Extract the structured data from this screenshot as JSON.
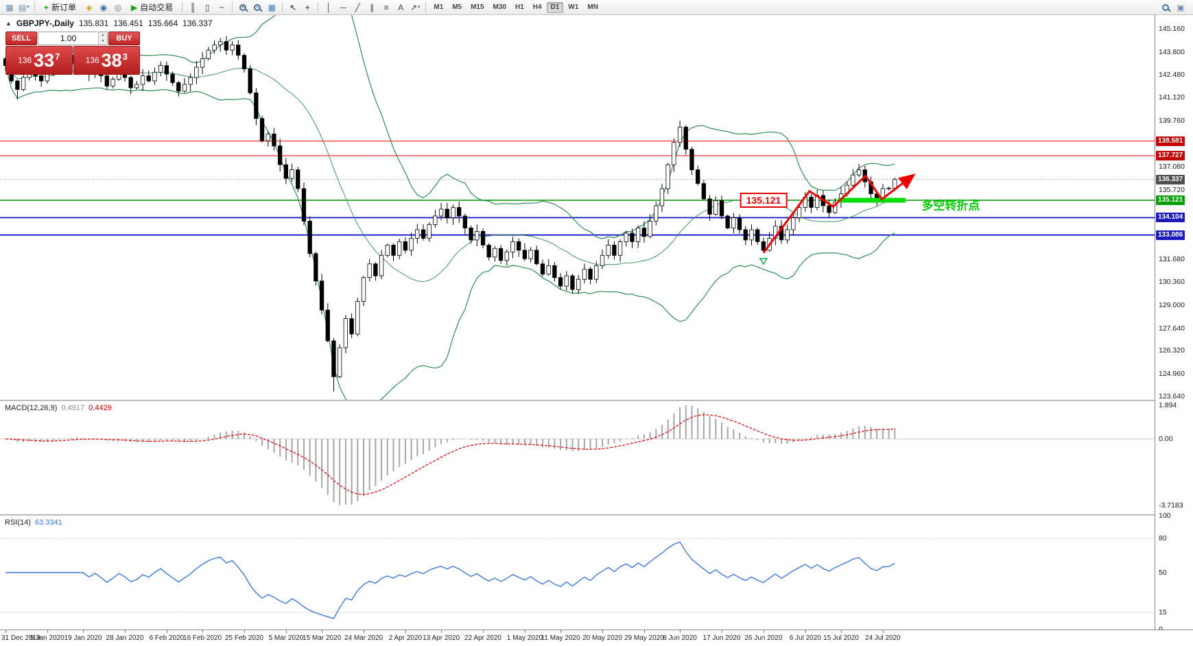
{
  "toolbar": {
    "items": [
      {
        "type": "icon",
        "name": "new-chart-icon",
        "glyph": "▦",
        "color": "#6b8cae"
      },
      {
        "type": "icon",
        "name": "profiles-icon",
        "glyph": "▤",
        "color": "#6b8cae",
        "caret": true
      },
      {
        "type": "sep"
      },
      {
        "type": "button",
        "name": "new-order-button",
        "glyph": "+",
        "glyph_color": "#0faf0f",
        "label": "新订单"
      },
      {
        "type": "icon",
        "name": "market-watch-icon",
        "glyph": "◈",
        "color": "#c8a415"
      },
      {
        "type": "icon",
        "name": "navigator-icon",
        "glyph": "◉",
        "color": "#3a6ea5"
      },
      {
        "type": "icon",
        "name": "terminal-icon",
        "glyph": "◎",
        "color": "#777777"
      },
      {
        "type": "button",
        "name": "auto-trading-button",
        "glyph": "▶",
        "glyph_color": "#12a512",
        "label": "自动交易"
      },
      {
        "type": "sep"
      },
      {
        "type": "icon",
        "name": "bar-chart-mode-icon",
        "glyph": "║",
        "color": "#444444"
      },
      {
        "type": "icon",
        "name": "candlestick-mode-icon",
        "glyph": "▯",
        "color": "#444444"
      },
      {
        "type": "icon",
        "name": "line-chart-mode-icon",
        "glyph": "~",
        "color": "#444444"
      },
      {
        "type": "sep"
      },
      {
        "type": "icon",
        "name": "zoom-in-icon",
        "magnifier": "+"
      },
      {
        "type": "icon",
        "name": "zoom-out-icon",
        "magnifier": "−"
      },
      {
        "type": "icon",
        "name": "tile-windows-icon",
        "glyph": "▦",
        "color": "#4a7ebb"
      },
      {
        "type": "sep"
      },
      {
        "type": "icon",
        "name": "cursor-icon",
        "glyph": "↖",
        "color": "#222222"
      },
      {
        "type": "icon",
        "name": "crosshair-icon",
        "glyph": "+",
        "color": "#222222"
      },
      {
        "type": "sep"
      },
      {
        "type": "icon",
        "name": "vertical-line-tool-icon",
        "glyph": "│",
        "color": "#444444"
      },
      {
        "type": "icon",
        "name": "horizontal-line-tool-icon",
        "glyph": "─",
        "color": "#444444"
      },
      {
        "type": "icon",
        "name": "trendline-tool-icon",
        "glyph": "╱",
        "color": "#444444"
      },
      {
        "type": "icon",
        "name": "equidistant-channel-tool-icon",
        "glyph": "∥",
        "color": "#444444"
      },
      {
        "type": "icon",
        "name": "fibonacci-tool-icon",
        "glyph": "≡",
        "color": "#444444"
      },
      {
        "type": "icon",
        "name": "text-tool-icon",
        "glyph": "A",
        "color": "#444444"
      },
      {
        "type": "icon",
        "name": "arrows-tool-icon",
        "glyph": "↗",
        "color": "#444444",
        "caret": true
      },
      {
        "type": "sep"
      },
      {
        "type": "tf",
        "name": "timeframe-m1",
        "label": "M1"
      },
      {
        "type": "tf",
        "name": "timeframe-m5",
        "label": "M5"
      },
      {
        "type": "tf",
        "name": "timeframe-m15",
        "label": "M15"
      },
      {
        "type": "tf",
        "name": "timeframe-m30",
        "label": "M30"
      },
      {
        "type": "tf",
        "name": "timeframe-h1",
        "label": "H1"
      },
      {
        "type": "tf",
        "name": "timeframe-h4",
        "label": "H4"
      },
      {
        "type": "tf",
        "name": "timeframe-d1",
        "label": "D1",
        "active": true
      },
      {
        "type": "tf",
        "name": "timeframe-w1",
        "label": "W1"
      },
      {
        "type": "tf",
        "name": "timeframe-mn",
        "label": "MN"
      }
    ],
    "right_items": [
      {
        "type": "icon",
        "name": "search-icon",
        "magnifier": ""
      },
      {
        "type": "icon",
        "name": "new-window-icon",
        "glyph": "▣",
        "color": "#6b8cae"
      }
    ]
  },
  "chart_header": {
    "collapse_icon": "▲",
    "symbol": "GBPJPY-,Daily",
    "open": "135.831",
    "high": "136.451",
    "low": "135.664",
    "close": "136.337"
  },
  "trade_panel": {
    "sell_label": "SELL",
    "buy_label": "BUY",
    "volume": "1.00",
    "spin_up_icon": "▲",
    "spin_down_icon": "▼",
    "sell_price": {
      "prefix": "136",
      "big": "33",
      "sup": "7"
    },
    "buy_price": {
      "prefix": "136",
      "big": "38",
      "sup": "3"
    }
  },
  "indicators": {
    "macd": {
      "name": "MACD(12,26,9)",
      "value": "0.4917",
      "signal": "0.4429",
      "axis": [
        {
          "text": "1.894",
          "v": 1.894
        },
        {
          "text": "0.00",
          "v": 0
        },
        {
          "text": "-3.7183",
          "v": -3.7183
        }
      ],
      "scale": {
        "max": 1.894,
        "min": -3.7183
      },
      "bar_color": "#a6a6a6",
      "signal_color": "#dd0000"
    },
    "rsi": {
      "name": "RSI(14)",
      "value": "63.3341",
      "axis": [
        {
          "text": "100",
          "v": 100
        },
        {
          "text": "80",
          "v": 80
        },
        {
          "text": "50",
          "v": 50
        },
        {
          "text": "15",
          "v": 15
        },
        {
          "text": "0",
          "v": 0
        }
      ],
      "levels": [
        80,
        15
      ],
      "line_color": "#3c78d8"
    }
  },
  "price_axis": {
    "ticks": [
      "145.160",
      "143.800",
      "142.480",
      "141.120",
      "139.760",
      "137.080",
      "135.720",
      "131.680",
      "130.360",
      "129.000",
      "127.640",
      "126.320",
      "124.960",
      "123.640"
    ],
    "badges": [
      {
        "text": "138.581",
        "value": 138.581,
        "color": "#c40000"
      },
      {
        "text": "137.727",
        "value": 137.727,
        "color": "#c40000"
      },
      {
        "text": "136.337",
        "value": 136.337,
        "color": "#4f4f4f"
      },
      {
        "text": "135.121",
        "value": 135.121,
        "color": "#00a000"
      },
      {
        "text": "134.104",
        "value": 134.104,
        "color": "#1c1cbe"
      },
      {
        "text": "133.086",
        "value": 133.086,
        "color": "#1c1cbe"
      }
    ]
  },
  "date_axis": [
    {
      "text": "31 Dec 2019",
      "i": 0
    },
    {
      "text": "9 Jan 2020",
      "i": 7
    },
    {
      "text": "19 Jan 2020",
      "i": 13
    },
    {
      "text": "28 Jan 2020",
      "i": 20
    },
    {
      "text": "6 Feb 2020",
      "i": 27
    },
    {
      "text": "16 Feb 2020",
      "i": 33
    },
    {
      "text": "25 Feb 2020",
      "i": 40
    },
    {
      "text": "5 Mar 2020",
      "i": 47
    },
    {
      "text": "15 Mar 2020",
      "i": 53
    },
    {
      "text": "24 Mar 2020",
      "i": 60
    },
    {
      "text": "2 Apr 2020",
      "i": 67
    },
    {
      "text": "13 Apr 2020",
      "i": 73
    },
    {
      "text": "22 Apr 2020",
      "i": 80
    },
    {
      "text": "1 May 2020",
      "i": 87
    },
    {
      "text": "11 May 2020",
      "i": 93
    },
    {
      "text": "20 May 2020",
      "i": 100
    },
    {
      "text": "29 May 2020",
      "i": 107
    },
    {
      "text": "8 Jun 2020",
      "i": 113
    },
    {
      "text": "17 Jun 2020",
      "i": 120
    },
    {
      "text": "26 Jun 2020",
      "i": 127
    },
    {
      "text": "6 Jul 2020",
      "i": 134
    },
    {
      "text": "15 Jul 2020",
      "i": 140
    },
    {
      "text": "24 Jul 2020",
      "i": 147
    }
  ],
  "annotations": {
    "support_label": {
      "text": "135.121",
      "i": 127,
      "price": 135.121
    },
    "turning_point_label": {
      "text": "多空转折点",
      "i": 153.5,
      "price": 134.9,
      "color": "#00cc00"
    },
    "zigzag": {
      "color": "#ee0000",
      "width": 3,
      "points": [
        [
          127,
          132.05
        ],
        [
          134.7,
          135.65
        ],
        [
          138.7,
          134.75
        ],
        [
          144.1,
          136.55
        ],
        [
          146.8,
          135.18
        ],
        [
          152.2,
          136.6
        ]
      ]
    },
    "highlight_bar": {
      "price": 135.121,
      "i1": 139.5,
      "i2": 150.8,
      "color": "#00dd00"
    },
    "start_marker": {
      "i": 127,
      "price": 131.55,
      "color": "#00b050"
    }
  },
  "chart_data": {
    "type": "candlestick",
    "symbol": "GBPJPY",
    "period": "Daily",
    "current": {
      "open": 135.831,
      "high": 136.451,
      "low": 135.664,
      "close": 136.337
    },
    "y_range": {
      "min": 123.45,
      "max": 145.95
    },
    "first_open": 143.4,
    "closes": [
      143.0,
      142.1,
      141.6,
      142.3,
      142.8,
      142.4,
      142.1,
      142.6,
      143.0,
      143.4,
      143.1,
      143.6,
      143.2,
      142.8,
      142.5,
      142.9,
      142.4,
      141.8,
      142.2,
      142.7,
      142.3,
      141.7,
      141.9,
      142.4,
      142.1,
      142.6,
      143.0,
      142.5,
      142.0,
      141.5,
      141.9,
      142.3,
      142.9,
      143.4,
      143.9,
      144.2,
      144.4,
      143.9,
      144.2,
      143.6,
      142.8,
      141.4,
      139.9,
      138.6,
      139.0,
      138.3,
      137.2,
      136.4,
      136.9,
      135.8,
      133.9,
      132.0,
      130.4,
      128.7,
      126.9,
      124.8,
      126.5,
      128.2,
      127.3,
      129.2,
      130.6,
      131.4,
      130.7,
      131.9,
      132.5,
      131.9,
      132.7,
      132.2,
      132.9,
      133.4,
      132.9,
      133.7,
      134.2,
      134.6,
      134.1,
      134.7,
      134.2,
      133.5,
      132.8,
      133.3,
      132.5,
      131.8,
      132.3,
      131.6,
      132.1,
      132.7,
      132.2,
      131.7,
      132.2,
      131.4,
      130.8,
      131.3,
      130.6,
      130.1,
      130.7,
      129.9,
      130.5,
      131.1,
      130.5,
      131.3,
      131.9,
      132.5,
      131.9,
      132.7,
      133.2,
      132.7,
      133.5,
      133.0,
      133.9,
      134.8,
      135.8,
      137.2,
      138.5,
      139.4,
      138.1,
      136.9,
      136.1,
      135.2,
      134.3,
      135.1,
      134.2,
      133.5,
      134.1,
      133.4,
      132.8,
      133.4,
      132.7,
      132.2,
      132.9,
      133.6,
      132.8,
      133.4,
      134.1,
      134.7,
      135.3,
      134.7,
      135.4,
      134.8,
      134.4,
      135.0,
      135.5,
      136.0,
      136.6,
      136.9,
      136.2,
      135.5,
      135.2,
      135.8,
      135.83,
      136.34
    ],
    "overrides": [
      {
        "i": 2,
        "l": 141.0
      },
      {
        "i": 36,
        "h": 144.62
      },
      {
        "i": 55,
        "l": 123.92
      },
      {
        "i": 113,
        "h": 139.78
      },
      {
        "i": 149,
        "o": 135.831,
        "h": 136.451,
        "l": 135.664,
        "c": 136.337
      }
    ],
    "hlines": [
      {
        "value": 138.581,
        "color": "#ff0000",
        "width": 1
      },
      {
        "value": 137.727,
        "color": "#ff0000",
        "width": 1
      },
      {
        "value": 135.121,
        "color": "#009600",
        "width": 1.4
      },
      {
        "value": 134.104,
        "color": "#1414c8",
        "width": 1.8
      },
      {
        "value": 133.086,
        "color": "#1414c8",
        "width": 1.8
      }
    ],
    "bid_line": {
      "value": 136.337,
      "color": "#aaaaaa"
    },
    "bollinger": {
      "period": 20,
      "deviation": 2,
      "color": "#2e8b57"
    }
  }
}
